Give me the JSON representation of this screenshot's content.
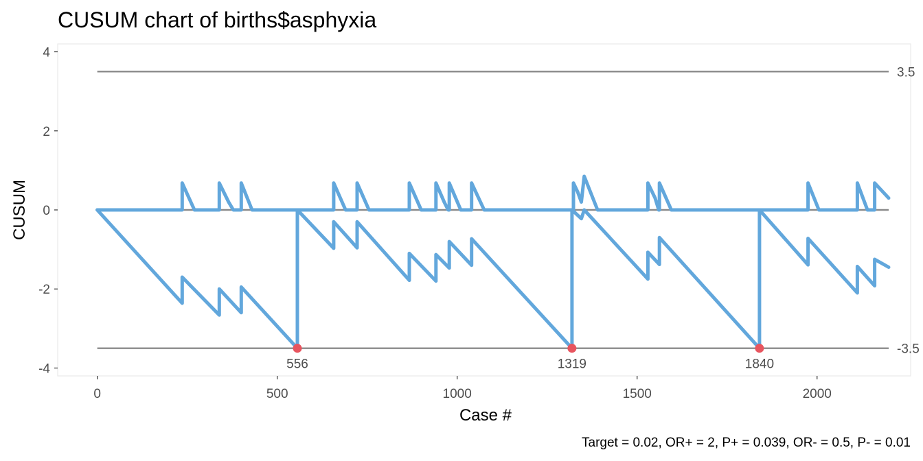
{
  "chart_data": {
    "type": "line",
    "title": "CUSUM chart of births$asphyxia",
    "xlabel": "Case #",
    "ylabel": "CUSUM",
    "caption": "Target = 0.02, OR+ = 2, P+ = 0.039, OR- = 0.5, P- = 0.01",
    "xlim": [
      -110,
      2260
    ],
    "ylim": [
      -4.2,
      4.2
    ],
    "x_ticks": [
      0,
      500,
      1000,
      1500,
      2000
    ],
    "x_tick_labels": [
      "0",
      "500",
      "1000",
      "1500",
      "2000"
    ],
    "y_ticks": [
      4,
      2,
      0,
      -2,
      -4
    ],
    "y_tick_labels": [
      "4",
      "2",
      "0",
      "-2",
      "-4"
    ],
    "grid": false,
    "line_color": "#62a7dc",
    "limit_color": "#8a8a8a",
    "signal_color": "#e8555f",
    "x_range": [
      0,
      2199
    ],
    "control_limits": [
      {
        "value": 3.5,
        "label": "3.5"
      },
      {
        "value": -3.5,
        "label": "-3.5"
      }
    ],
    "signals": [
      {
        "x": 556,
        "y": -3.5,
        "label": "556"
      },
      {
        "x": 1319,
        "y": -3.5,
        "label": "1319"
      },
      {
        "x": 1840,
        "y": -3.5,
        "label": "1840"
      }
    ],
    "series": [
      {
        "values": [
          [
            0,
            0
          ],
          [
            236,
            0
          ],
          [
            236,
            0.68
          ],
          [
            270,
            0
          ],
          [
            339,
            0
          ],
          [
            339,
            0.68
          ],
          [
            365,
            0.2
          ],
          [
            378,
            0
          ],
          [
            400,
            0
          ],
          [
            400,
            0.68
          ],
          [
            430,
            0
          ],
          [
            657,
            0
          ],
          [
            657,
            0.68
          ],
          [
            690,
            0
          ],
          [
            722,
            0
          ],
          [
            722,
            0.68
          ],
          [
            755,
            0
          ],
          [
            867,
            0
          ],
          [
            867,
            0.68
          ],
          [
            900,
            0
          ],
          [
            941,
            0
          ],
          [
            941,
            0.68
          ],
          [
            964,
            0.2
          ],
          [
            975,
            0
          ],
          [
            978,
            0
          ],
          [
            978,
            0.68
          ],
          [
            1010,
            0
          ],
          [
            1040,
            0
          ],
          [
            1040,
            0.68
          ],
          [
            1075,
            0
          ],
          [
            1319,
            0
          ],
          [
            1323,
            0
          ],
          [
            1323,
            0.68
          ],
          [
            1335,
            0.45
          ],
          [
            1345,
            0.2
          ],
          [
            1353,
            0.85
          ],
          [
            1390,
            0
          ],
          [
            1530,
            0
          ],
          [
            1530,
            0.68
          ],
          [
            1550,
            0.3
          ],
          [
            1560,
            0
          ],
          [
            1562,
            0
          ],
          [
            1562,
            0.68
          ],
          [
            1595,
            0
          ],
          [
            1975,
            0
          ],
          [
            1975,
            0.68
          ],
          [
            2005,
            0
          ],
          [
            2112,
            0
          ],
          [
            2112,
            0.68
          ],
          [
            2140,
            0
          ],
          [
            2160,
            0
          ],
          [
            2160,
            0.68
          ],
          [
            2199,
            0.3
          ]
        ]
      },
      {
        "values": [
          [
            0,
            0
          ],
          [
            236,
            -2.36
          ],
          [
            236,
            -1.7
          ],
          [
            339,
            -2.66
          ],
          [
            339,
            -2.0
          ],
          [
            400,
            -2.6
          ],
          [
            400,
            -1.95
          ],
          [
            556,
            -3.5
          ],
          [
            556,
            0
          ],
          [
            657,
            -0.97
          ],
          [
            657,
            -0.3
          ],
          [
            722,
            -0.96
          ],
          [
            722,
            -0.3
          ],
          [
            867,
            -1.78
          ],
          [
            867,
            -1.1
          ],
          [
            941,
            -1.8
          ],
          [
            941,
            -1.13
          ],
          [
            978,
            -1.47
          ],
          [
            978,
            -0.8
          ],
          [
            1040,
            -1.4
          ],
          [
            1040,
            -0.73
          ],
          [
            1319,
            -3.5
          ],
          [
            1319,
            0
          ],
          [
            1345,
            -0.22
          ],
          [
            1353,
            0
          ],
          [
            1530,
            -1.75
          ],
          [
            1530,
            -1.07
          ],
          [
            1562,
            -1.38
          ],
          [
            1562,
            -0.7
          ],
          [
            1840,
            -3.5
          ],
          [
            1840,
            0
          ],
          [
            1975,
            -1.39
          ],
          [
            1975,
            -0.72
          ],
          [
            2112,
            -2.1
          ],
          [
            2112,
            -1.43
          ],
          [
            2160,
            -1.92
          ],
          [
            2160,
            -1.25
          ],
          [
            2199,
            -1.45
          ]
        ]
      }
    ]
  }
}
